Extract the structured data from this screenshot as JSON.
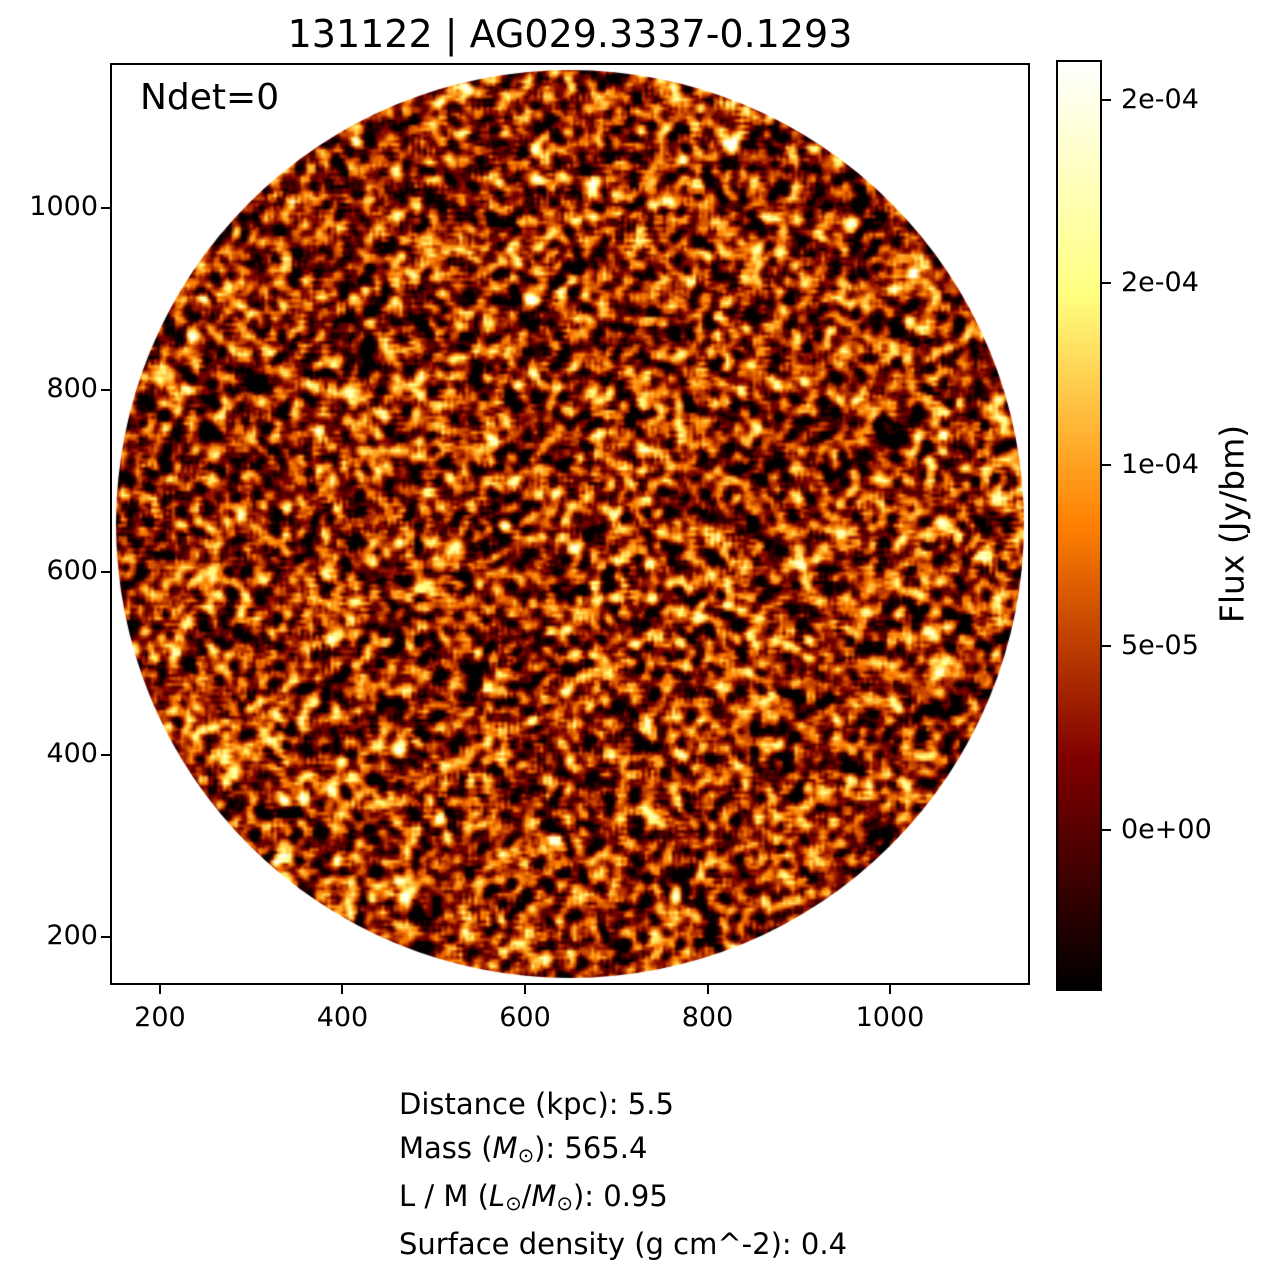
{
  "title": "131122 | AG029.3337-0.1293",
  "annotation": "Ndet=0",
  "chart_data": {
    "type": "heatmap",
    "title": "131122 | AG029.3337-0.1293",
    "description": "Circular radio-continuum flux cutout filled with correlated speckle noise (no detections, Ndet=0); colormap afmhot (black-red-orange-yellow-white).",
    "colormap": "afmhot",
    "x_ticks": [
      200,
      400,
      600,
      800,
      1000
    ],
    "y_ticks": [
      200,
      400,
      600,
      800,
      1000
    ],
    "xlim": [
      145,
      1153
    ],
    "ylim": [
      147,
      1160
    ],
    "grid": false,
    "annotation": "Ndet=0",
    "colorbar": {
      "label": "Flux (Jy/bm)",
      "tick_labels": [
        "2e-04",
        "2e-04",
        "1e-04",
        "5e-05",
        "0e+00"
      ],
      "tick_values": [
        0.0002,
        0.00015,
        0.0001,
        5e-05,
        0.0
      ],
      "value_range_approx": [
        -4.4e-05,
        0.00021
      ]
    },
    "metadata_text": [
      "Distance (kpc): 5.5",
      "Mass (M⊙): 565.4",
      "L / M (L⊙/M⊙): 0.95",
      "Surface density (g cm^-2): 0.4"
    ]
  },
  "axes": {
    "x_tick_labels": [
      "200",
      "400",
      "600",
      "800",
      "1000"
    ],
    "x_tick_pos": [
      0.0543,
      0.2527,
      0.4511,
      0.6495,
      0.8478
    ],
    "y_tick_labels": [
      "1000",
      "800",
      "600",
      "400",
      "200"
    ],
    "y_tick_pos": [
      0.1573,
      0.3549,
      0.5526,
      0.7503,
      0.948
    ]
  },
  "colorbar": {
    "label": "Flux (Jy/bm)",
    "ticks": [
      {
        "label": "2e-04",
        "pos": 0.043
      },
      {
        "label": "2e-04",
        "pos": 0.2395
      },
      {
        "label": "1e-04",
        "pos": 0.435
      },
      {
        "label": "5e-05",
        "pos": 0.6294
      },
      {
        "label": "0e+00",
        "pos": 0.8271
      }
    ],
    "gradient_colors": [
      "#ffffff",
      "#ffffbf",
      "#ffff80",
      "#ffbf40",
      "#ff8000",
      "#bf4000",
      "#800000",
      "#400000",
      "#000000"
    ]
  },
  "footer_lines": [
    [
      {
        "t": "Distance (kpc): 5.5"
      }
    ],
    [
      {
        "t": "Mass ("
      },
      {
        "t": "M",
        "s": "i"
      },
      {
        "t": "⊙",
        "s": "sub"
      },
      {
        "t": "): 565.4"
      }
    ],
    [
      {
        "t": "L / M ("
      },
      {
        "t": "L",
        "s": "i"
      },
      {
        "t": "⊙",
        "s": "sub"
      },
      {
        "t": "/"
      },
      {
        "t": "M",
        "s": "i"
      },
      {
        "t": "⊙",
        "s": "sub"
      },
      {
        "t": "): 0.95"
      }
    ],
    [
      {
        "t": "Surface density (g cm^-2): 0.4"
      }
    ]
  ],
  "render": {
    "seed": 131122,
    "noise_mean": 0.3,
    "noise_sd": 0.21
  }
}
